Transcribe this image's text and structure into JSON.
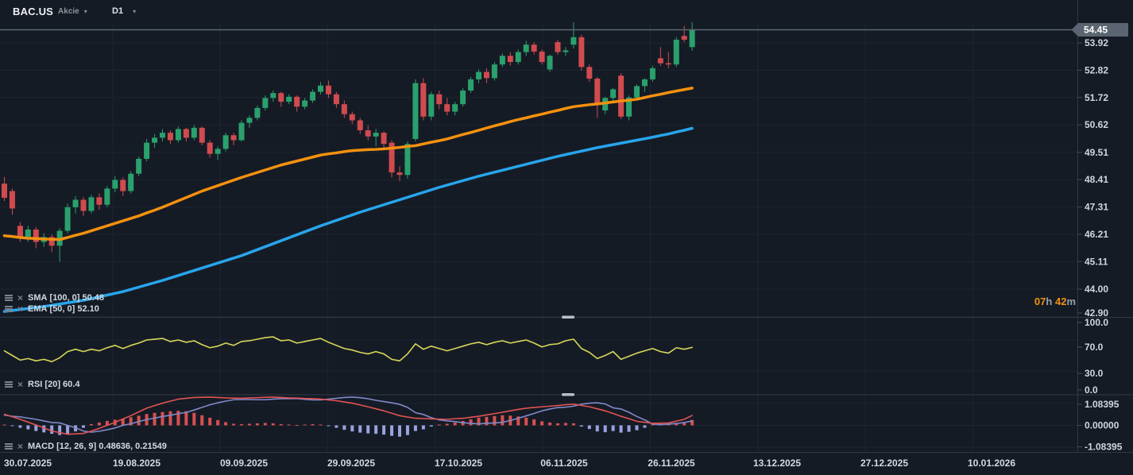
{
  "header": {
    "symbol": "BAC.US",
    "instrument_type": "Akcie",
    "timeframe": "D1"
  },
  "indicators": {
    "sma": {
      "name": "SMA",
      "params": "[100, 0]",
      "value": "50.48"
    },
    "ema": {
      "name": "EMA",
      "params": "[50, 0]",
      "value": "52.10"
    },
    "rsi": {
      "name": "RSI",
      "params": "[20]",
      "value": "60.4"
    },
    "macd": {
      "name": "MACD",
      "params": "[12, 26, 9]",
      "value": "0.48636, 0.21549"
    }
  },
  "countdown": {
    "hours": "07",
    "hours_unit": "h",
    "minutes": "42",
    "minutes_unit": "m"
  },
  "colors": {
    "background": "#151b25",
    "grid": "#1d2531",
    "separator": "#2e3845",
    "candle_up": "#2aa06d",
    "candle_down": "#d04b4f",
    "ema_line": "#f5910f",
    "sma_line": "#28a5ec",
    "rsi_line": "#d6d75a",
    "macd_line": "#e05353",
    "signal_line": "#8089c9",
    "hist_positive": "#d94f4f",
    "hist_negative": "#97a3e0",
    "price_line": "#5d6874",
    "badge": "#5a6571",
    "countdown_accent": "#f0920e",
    "axis_text": "#cfd6de"
  },
  "chart_data": {
    "type": "candlestick",
    "symbol": "BAC.US",
    "timeframe": "D1",
    "x_labels": [
      "30.07.2025",
      "19.08.2025",
      "09.09.2025",
      "29.09.2025",
      "17.10.2025",
      "06.11.2025",
      "26.11.2025",
      "13.12.2025",
      "27.12.2025",
      "10.01.2026"
    ],
    "price_axis": {
      "ticks": [
        "53.92",
        "52.82",
        "51.72",
        "50.62",
        "49.51",
        "48.41",
        "47.31",
        "46.21",
        "45.11",
        "44.00",
        "42.90"
      ],
      "last_price": "54.45",
      "range": [
        42.9,
        55.65
      ]
    },
    "rsi_axis": {
      "ticks": [
        "100.0",
        "70.0",
        "30.0",
        "0.0"
      ],
      "range": [
        0,
        100
      ]
    },
    "macd_axis": {
      "ticks": [
        "1.08395",
        "0.00000",
        "-1.08395"
      ]
    },
    "candles": [
      [
        48.25,
        48.52,
        47.55,
        47.68
      ],
      [
        47.95,
        48.05,
        47.0,
        47.25
      ],
      [
        46.55,
        46.7,
        45.9,
        46.1
      ],
      [
        46.1,
        46.55,
        45.9,
        46.4
      ],
      [
        46.4,
        46.5,
        45.65,
        45.9
      ],
      [
        45.9,
        46.25,
        45.7,
        46.1
      ],
      [
        46.1,
        46.2,
        45.5,
        45.75
      ],
      [
        45.75,
        46.45,
        45.1,
        46.35
      ],
      [
        46.35,
        47.45,
        46.25,
        47.3
      ],
      [
        47.3,
        47.75,
        47.05,
        47.6
      ],
      [
        47.6,
        47.7,
        46.95,
        47.15
      ],
      [
        47.15,
        47.8,
        47.05,
        47.7
      ],
      [
        47.7,
        47.85,
        47.2,
        47.4
      ],
      [
        47.4,
        48.15,
        47.3,
        48.05
      ],
      [
        48.05,
        48.55,
        47.9,
        48.4
      ],
      [
        48.4,
        48.5,
        47.75,
        47.95
      ],
      [
        47.95,
        48.75,
        47.85,
        48.65
      ],
      [
        48.65,
        49.35,
        48.55,
        49.25
      ],
      [
        49.25,
        50.05,
        49.15,
        49.9
      ],
      [
        49.9,
        50.25,
        49.7,
        50.1
      ],
      [
        50.1,
        50.45,
        49.95,
        50.3
      ],
      [
        50.3,
        50.4,
        49.85,
        50.0
      ],
      [
        50.0,
        50.55,
        49.9,
        50.45
      ],
      [
        50.45,
        50.5,
        49.95,
        50.1
      ],
      [
        50.1,
        50.6,
        50.0,
        50.5
      ],
      [
        50.5,
        50.55,
        49.8,
        49.9
      ],
      [
        49.9,
        50.0,
        49.3,
        49.45
      ],
      [
        49.45,
        49.75,
        49.2,
        49.65
      ],
      [
        49.65,
        50.3,
        49.55,
        50.2
      ],
      [
        50.2,
        50.3,
        49.8,
        50.0
      ],
      [
        50.0,
        50.8,
        49.95,
        50.7
      ],
      [
        50.7,
        51.0,
        50.5,
        50.9
      ],
      [
        50.9,
        51.4,
        50.8,
        51.3
      ],
      [
        51.3,
        51.8,
        51.2,
        51.7
      ],
      [
        51.7,
        52.0,
        51.55,
        51.9
      ],
      [
        51.9,
        51.95,
        51.35,
        51.55
      ],
      [
        51.55,
        51.85,
        51.45,
        51.75
      ],
      [
        51.75,
        51.8,
        51.15,
        51.35
      ],
      [
        51.35,
        51.7,
        51.25,
        51.6
      ],
      [
        51.6,
        52.05,
        51.5,
        51.95
      ],
      [
        51.95,
        52.35,
        51.85,
        52.2
      ],
      [
        52.2,
        52.4,
        51.7,
        51.85
      ],
      [
        51.85,
        51.95,
        51.3,
        51.45
      ],
      [
        51.45,
        51.6,
        50.9,
        51.05
      ],
      [
        51.05,
        51.15,
        50.65,
        50.8
      ],
      [
        50.8,
        50.9,
        50.25,
        50.4
      ],
      [
        50.4,
        50.6,
        50.0,
        50.15
      ],
      [
        50.15,
        50.45,
        49.75,
        50.3
      ],
      [
        50.3,
        50.35,
        49.65,
        49.85
      ],
      [
        49.9,
        50.0,
        48.5,
        48.7
      ],
      [
        48.7,
        48.95,
        48.35,
        48.6
      ],
      [
        48.6,
        49.95,
        48.45,
        49.85
      ],
      [
        50.05,
        52.45,
        49.95,
        52.3
      ],
      [
        52.3,
        52.5,
        50.8,
        50.95
      ],
      [
        50.95,
        51.95,
        50.8,
        51.85
      ],
      [
        51.85,
        52.0,
        51.25,
        51.45
      ],
      [
        51.45,
        51.7,
        51.0,
        51.15
      ],
      [
        51.15,
        51.55,
        51.0,
        51.45
      ],
      [
        51.45,
        52.1,
        51.35,
        52.0
      ],
      [
        52.0,
        52.55,
        51.9,
        52.45
      ],
      [
        52.45,
        52.85,
        52.3,
        52.75
      ],
      [
        52.75,
        52.9,
        52.3,
        52.5
      ],
      [
        52.5,
        53.15,
        52.4,
        53.05
      ],
      [
        53.05,
        53.5,
        52.95,
        53.4
      ],
      [
        53.4,
        53.55,
        53.0,
        53.15
      ],
      [
        53.15,
        53.65,
        53.05,
        53.55
      ],
      [
        53.55,
        54.0,
        53.4,
        53.85
      ],
      [
        53.85,
        53.95,
        53.45,
        53.57
      ],
      [
        53.57,
        53.65,
        53.05,
        53.15
      ],
      [
        52.85,
        53.45,
        52.75,
        53.4
      ],
      [
        53.95,
        54.05,
        53.45,
        53.55
      ],
      [
        53.55,
        53.75,
        53.4,
        53.62
      ],
      [
        53.85,
        54.75,
        53.7,
        54.15
      ],
      [
        54.15,
        54.25,
        52.8,
        52.95
      ],
      [
        52.95,
        53.05,
        52.35,
        52.48
      ],
      [
        52.48,
        52.55,
        50.9,
        51.5
      ],
      [
        51.2,
        51.75,
        51.05,
        51.7
      ],
      [
        51.7,
        52.1,
        51.55,
        52.05
      ],
      [
        52.6,
        52.7,
        50.85,
        50.95
      ],
      [
        50.95,
        51.8,
        50.8,
        51.72
      ],
      [
        51.72,
        52.25,
        51.6,
        52.18
      ],
      [
        52.18,
        52.5,
        51.95,
        52.45
      ],
      [
        52.45,
        53.0,
        52.35,
        52.9
      ],
      [
        53.3,
        53.75,
        53.0,
        53.1
      ],
      [
        53.1,
        53.55,
        52.9,
        53.05
      ],
      [
        53.05,
        54.15,
        52.95,
        54.05
      ],
      [
        54.2,
        54.6,
        53.95,
        54.05
      ],
      [
        53.75,
        54.75,
        53.6,
        54.45
      ]
    ],
    "sma_100": [
      43.1,
      43.14,
      43.18,
      43.22,
      43.26,
      43.3,
      43.35,
      43.4,
      43.45,
      43.5,
      43.55,
      43.62,
      43.69,
      43.76,
      43.83,
      43.9,
      43.99,
      44.08,
      44.17,
      44.26,
      44.35,
      44.45,
      44.55,
      44.65,
      44.75,
      44.85,
      44.95,
      45.05,
      45.15,
      45.25,
      45.35,
      45.47,
      45.59,
      45.71,
      45.83,
      45.95,
      46.07,
      46.19,
      46.31,
      46.43,
      46.55,
      46.66,
      46.77,
      46.88,
      46.99,
      47.1,
      47.2,
      47.3,
      47.4,
      47.5,
      47.6,
      47.7,
      47.8,
      47.9,
      48.0,
      48.1,
      48.19,
      48.28,
      48.37,
      48.46,
      48.55,
      48.63,
      48.71,
      48.79,
      48.87,
      48.95,
      49.03,
      49.11,
      49.19,
      49.27,
      49.35,
      49.42,
      49.49,
      49.56,
      49.63,
      49.7,
      49.76,
      49.82,
      49.88,
      49.94,
      50.0,
      50.06,
      50.12,
      50.19,
      50.25,
      50.33,
      50.4,
      50.48
    ],
    "ema_50": [
      46.15,
      46.12,
      46.08,
      46.05,
      46.04,
      46.02,
      46.01,
      46.0,
      46.08,
      46.17,
      46.25,
      46.35,
      46.45,
      46.55,
      46.65,
      46.75,
      46.85,
      46.95,
      47.07,
      47.18,
      47.3,
      47.43,
      47.56,
      47.69,
      47.82,
      47.95,
      48.06,
      48.17,
      48.28,
      48.39,
      48.5,
      48.6,
      48.7,
      48.8,
      48.9,
      49.0,
      49.08,
      49.16,
      49.24,
      49.32,
      49.4,
      49.45,
      49.49,
      49.54,
      49.58,
      49.6,
      49.62,
      49.63,
      49.65,
      49.68,
      49.71,
      49.75,
      49.78,
      49.85,
      49.92,
      49.98,
      50.05,
      50.14,
      50.23,
      50.31,
      50.4,
      50.49,
      50.58,
      50.66,
      50.75,
      50.83,
      50.9,
      50.98,
      51.05,
      51.13,
      51.2,
      51.28,
      51.35,
      51.39,
      51.43,
      51.46,
      51.5,
      51.54,
      51.58,
      51.61,
      51.65,
      51.72,
      51.79,
      51.85,
      51.92,
      51.98,
      52.04,
      52.1
    ],
    "rsi_20": [
      56,
      50,
      44,
      46,
      43,
      45,
      42,
      47,
      55,
      58,
      55,
      58,
      56,
      60,
      63,
      59,
      63,
      66,
      70,
      71,
      72,
      68,
      70,
      67,
      69,
      64,
      60,
      62,
      66,
      63,
      68,
      69,
      71,
      73,
      74,
      69,
      70,
      66,
      68,
      70,
      72,
      67,
      63,
      59,
      57,
      54,
      52,
      55,
      52,
      45,
      43,
      52,
      65,
      58,
      62,
      59,
      56,
      59,
      62,
      65,
      67,
      64,
      67,
      69,
      66,
      68,
      70,
      66,
      61,
      64,
      65,
      69,
      71,
      59,
      54,
      46,
      50,
      55,
      45,
      49,
      53,
      56,
      59,
      55,
      53,
      60,
      58,
      60.4
    ],
    "macd": {
      "line": [
        0.55,
        0.43,
        0.3,
        0.16,
        0.02,
        -0.13,
        -0.28,
        -0.36,
        -0.44,
        -0.42,
        -0.4,
        -0.28,
        -0.15,
        0.0,
        0.15,
        0.32,
        0.48,
        0.67,
        0.85,
        0.98,
        1.1,
        1.2,
        1.3,
        1.34,
        1.38,
        1.39,
        1.4,
        1.38,
        1.36,
        1.35,
        1.34,
        1.36,
        1.37,
        1.39,
        1.4,
        1.38,
        1.36,
        1.35,
        1.33,
        1.32,
        1.3,
        1.26,
        1.22,
        1.16,
        1.1,
        1.01,
        0.92,
        0.82,
        0.72,
        0.6,
        0.48,
        0.41,
        0.35,
        0.34,
        0.32,
        0.31,
        0.3,
        0.33,
        0.35,
        0.4,
        0.45,
        0.52,
        0.58,
        0.65,
        0.72,
        0.79,
        0.85,
        0.89,
        0.92,
        0.95,
        0.98,
        1.02,
        1.05,
        0.99,
        0.92,
        0.82,
        0.72,
        0.59,
        0.45,
        0.33,
        0.2,
        0.15,
        0.1,
        0.11,
        0.12,
        0.21,
        0.3,
        0.49
      ],
      "signal": [
        0.51,
        0.45,
        0.42,
        0.36,
        0.3,
        0.22,
        0.14,
        0.12,
        0.0,
        -0.12,
        -0.28,
        -0.34,
        -0.29,
        -0.22,
        -0.13,
        0.0,
        0.08,
        0.19,
        0.29,
        0.36,
        0.44,
        0.5,
        0.58,
        0.64,
        0.76,
        0.89,
        1.02,
        1.12,
        1.2,
        1.27,
        1.28,
        1.28,
        1.27,
        1.27,
        1.3,
        1.32,
        1.32,
        1.33,
        1.29,
        1.26,
        1.26,
        1.3,
        1.34,
        1.38,
        1.4,
        1.37,
        1.32,
        1.24,
        1.18,
        1.12,
        1.04,
        0.89,
        0.63,
        0.54,
        0.38,
        0.27,
        0.22,
        0.19,
        0.13,
        0.1,
        0.07,
        0.1,
        0.12,
        0.15,
        0.24,
        0.35,
        0.47,
        0.59,
        0.72,
        0.81,
        0.88,
        0.9,
        0.95,
        1.05,
        1.1,
        1.12,
        1.06,
        0.87,
        0.81,
        0.65,
        0.44,
        0.27,
        0.06,
        0.03,
        0.06,
        0.09,
        0.14,
        0.22
      ],
      "histogram": [
        0.04,
        -0.02,
        -0.12,
        -0.2,
        -0.28,
        -0.35,
        -0.42,
        -0.48,
        -0.44,
        -0.3,
        -0.12,
        0.06,
        0.14,
        0.22,
        0.28,
        0.32,
        0.4,
        0.48,
        0.56,
        0.62,
        0.66,
        0.7,
        0.72,
        0.7,
        0.62,
        0.5,
        0.38,
        0.26,
        0.16,
        0.08,
        0.06,
        0.08,
        0.1,
        0.12,
        0.1,
        0.06,
        0.04,
        0.02,
        0.04,
        0.06,
        0.04,
        -0.04,
        -0.12,
        -0.22,
        -0.3,
        -0.36,
        -0.4,
        -0.42,
        -0.46,
        -0.52,
        -0.56,
        -0.48,
        -0.28,
        -0.2,
        -0.06,
        0.04,
        0.08,
        0.14,
        0.22,
        0.3,
        0.38,
        0.42,
        0.46,
        0.5,
        0.48,
        0.44,
        0.38,
        0.3,
        0.2,
        0.14,
        0.1,
        0.12,
        0.1,
        -0.06,
        -0.18,
        -0.3,
        -0.34,
        -0.28,
        -0.36,
        -0.32,
        -0.24,
        -0.12,
        0.04,
        0.08,
        0.06,
        0.12,
        0.16,
        0.27
      ]
    }
  }
}
